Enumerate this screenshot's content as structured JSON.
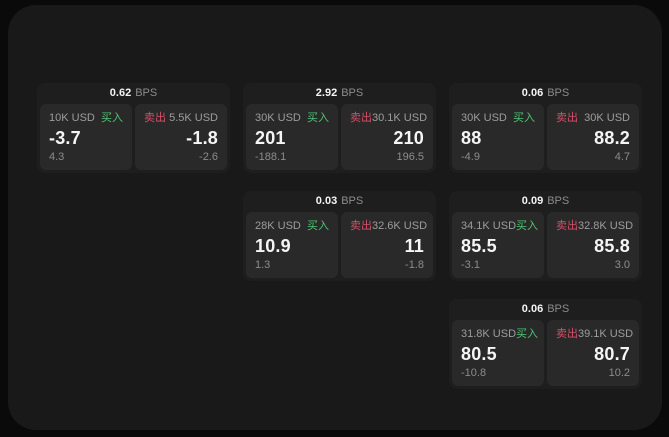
{
  "colors": {
    "page_bg": "#0a0a0a",
    "panel_bg": "#191919",
    "card_bg": "#1e1e1e",
    "tile_bg": "#292929",
    "buy": "#4fc473",
    "sell": "#d25068",
    "label": "#9d9d9d",
    "muted": "#8c8c8c",
    "value": "#f5f5f5"
  },
  "labels": {
    "bps": "BPS",
    "buy": "买入",
    "sell": "卖出"
  },
  "cards": [
    {
      "row": 1,
      "col": 1,
      "bps": "0.62",
      "buy": {
        "amount": "10K USD",
        "price": "-3.7",
        "delta": "4.3"
      },
      "sell": {
        "amount": "5.5K USD",
        "price": "-1.8",
        "delta": "-2.6"
      }
    },
    {
      "row": 1,
      "col": 2,
      "bps": "2.92",
      "buy": {
        "amount": "30K USD",
        "price": "201",
        "delta": "-188.1"
      },
      "sell": {
        "amount": "30.1K USD",
        "price": "210",
        "delta": "196.5"
      }
    },
    {
      "row": 1,
      "col": 3,
      "bps": "0.06",
      "buy": {
        "amount": "30K USD",
        "price": "88",
        "delta": "-4.9"
      },
      "sell": {
        "amount": "30K USD",
        "price": "88.2",
        "delta": "4.7"
      }
    },
    {
      "row": 2,
      "col": 2,
      "bps": "0.03",
      "buy": {
        "amount": "28K USD",
        "price": "10.9",
        "delta": "1.3"
      },
      "sell": {
        "amount": "32.6K USD",
        "price": "11",
        "delta": "-1.8"
      }
    },
    {
      "row": 2,
      "col": 3,
      "bps": "0.09",
      "buy": {
        "amount": "34.1K USD",
        "price": "85.5",
        "delta": "-3.1"
      },
      "sell": {
        "amount": "32.8K USD",
        "price": "85.8",
        "delta": "3.0"
      }
    },
    {
      "row": 3,
      "col": 3,
      "bps": "0.06",
      "buy": {
        "amount": "31.8K USD",
        "price": "80.5",
        "delta": "-10.8"
      },
      "sell": {
        "amount": "39.1K USD",
        "price": "80.7",
        "delta": "10.2"
      }
    }
  ]
}
